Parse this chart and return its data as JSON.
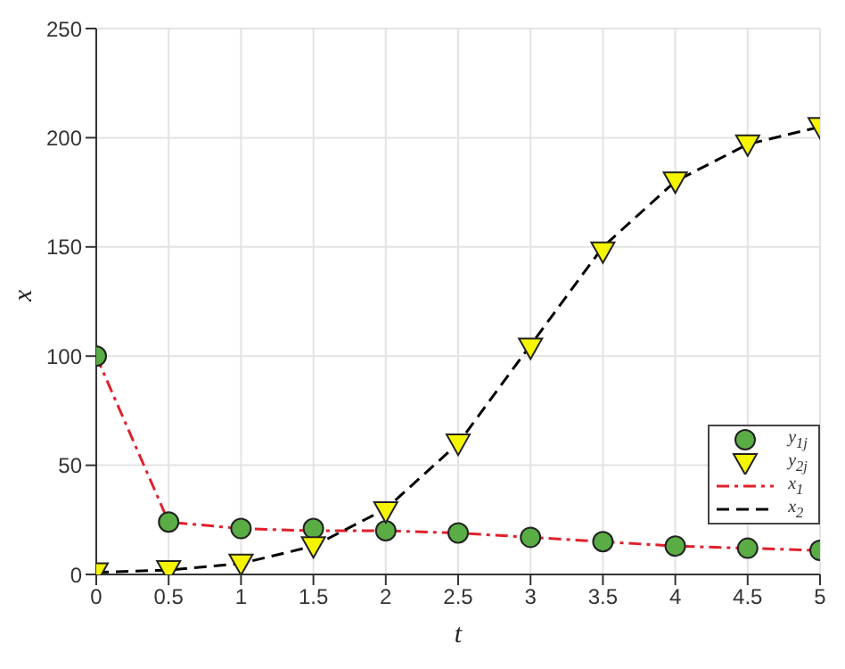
{
  "chart_data": {
    "type": "line",
    "xlabel": "t",
    "ylabel": "x",
    "x": [
      0,
      0.5,
      1,
      1.5,
      2,
      2.5,
      3,
      3.5,
      4,
      4.5,
      5
    ],
    "series": [
      {
        "name": "y$_{1j}$",
        "type": "scatter",
        "marker": "circle",
        "color": "#5aac44",
        "values": [
          100,
          24,
          21,
          21,
          20,
          19,
          17,
          15,
          13,
          12,
          11
        ]
      },
      {
        "name": "y$_{2j}$",
        "type": "scatter",
        "marker": "triangle",
        "color": "#f5f500",
        "values": [
          1,
          2,
          5,
          13,
          29,
          60,
          104,
          148,
          180,
          197,
          205
        ]
      },
      {
        "name": "x$_{1}$",
        "marker": "none",
        "line_style": "dashdot",
        "color": "#e0202a",
        "values": [
          100,
          24,
          21,
          20,
          20,
          19,
          17,
          15,
          13,
          12,
          11
        ]
      },
      {
        "name": "x$_{2}$",
        "marker": "none",
        "line_style": "dashed",
        "color": "#000000",
        "values": [
          1,
          2,
          5,
          13,
          30,
          60,
          105,
          150,
          180,
          197,
          205
        ]
      }
    ],
    "xlim": [
      0,
      5
    ],
    "xticks": [
      0,
      0.5,
      1,
      1.5,
      2,
      2.5,
      3,
      3.5,
      4,
      4.5,
      5
    ],
    "ylim": [
      0,
      250
    ],
    "yticks": [
      0,
      50,
      100,
      150,
      200,
      250
    ],
    "grid": true,
    "legend": "bottom right"
  }
}
